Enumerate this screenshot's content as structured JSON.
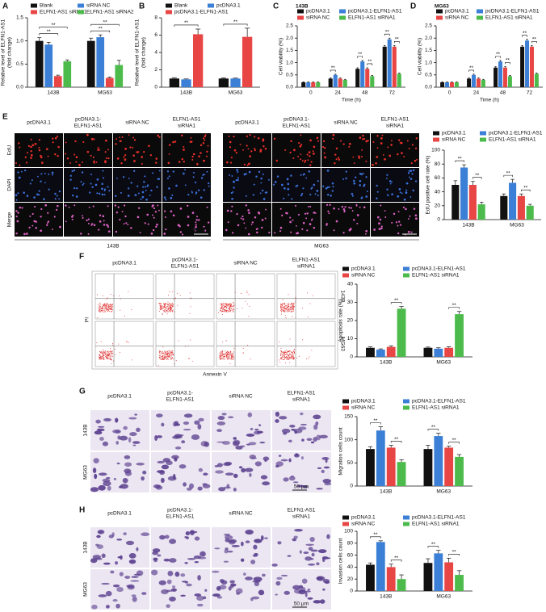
{
  "panels": [
    "A",
    "B",
    "C",
    "D",
    "E",
    "F",
    "G",
    "H"
  ],
  "chart_data": [
    {
      "type": "bar",
      "ylabel": [
        "Relative level of ELFN1-AS1",
        "(fold change)"
      ],
      "categories": [
        "143B",
        "MG63"
      ],
      "series": [
        {
          "name": "Blank",
          "color": "#111111",
          "values": [
            1.0,
            1.0
          ],
          "errors": [
            0.07,
            0.06
          ]
        },
        {
          "name": "siRNA NC",
          "color": "#3b7fd6",
          "values": [
            0.92,
            1.08
          ],
          "errors": [
            0.05,
            0.05
          ]
        },
        {
          "name": "ELFN1-AS1 siRNA1",
          "color": "#e84545",
          "values": [
            0.24,
            0.2
          ],
          "errors": [
            0.02,
            0.02
          ]
        },
        {
          "name": "ELFN1-AS1 siRNA2",
          "color": "#4cbb4c",
          "values": [
            0.56,
            0.48
          ],
          "errors": [
            0.03,
            0.1
          ]
        }
      ],
      "ylim": [
        0,
        1.5
      ],
      "yticks": [
        {
          "value": 0,
          "label": "0.0"
        },
        0.5,
        {
          "value": 1,
          "label": "1.0"
        },
        1.5
      ],
      "annotations": [
        "**",
        "**",
        "**",
        "**"
      ]
    },
    {
      "type": "bar",
      "ylabel": [
        "Relative level of ELFN1-AS1",
        "(fold change)"
      ],
      "categories": [
        "143B",
        "MG63"
      ],
      "series": [
        {
          "name": "Blank",
          "color": "#111111",
          "values": [
            1.0,
            1.0
          ],
          "errors": [
            0.1,
            0.08
          ]
        },
        {
          "name": "pcDNA3.1",
          "color": "#3b7fd6",
          "values": [
            0.9,
            1.0
          ],
          "errors": [
            0.05,
            0.05
          ]
        },
        {
          "name": "pcDNA3.1-ELFN1-AS1",
          "color": "#e84545",
          "values": [
            6.1,
            5.8
          ],
          "errors": [
            0.6,
            1.0
          ]
        }
      ],
      "ylim": [
        0,
        8
      ],
      "yticks": [
        0,
        2,
        4,
        6,
        8
      ],
      "annotations": [
        "**",
        "**"
      ]
    },
    {
      "type": "bar",
      "title": "143B",
      "ylabel": [
        "Cell viability (%)"
      ],
      "xlabel": "Time (h)",
      "categories": [
        "0",
        "24",
        "48",
        "72"
      ],
      "series": [
        {
          "name": "pcDNA3.1",
          "color": "#111111",
          "values": [
            0.2,
            0.35,
            0.75,
            1.65
          ],
          "errors": [
            0.02,
            0.03,
            0.04,
            0.05
          ]
        },
        {
          "name": "pcDNA3.1-ELFN1-AS1",
          "color": "#3b7fd6",
          "values": [
            0.2,
            0.5,
            1.05,
            1.95
          ],
          "errors": [
            0.02,
            0.03,
            0.04,
            0.05
          ]
        },
        {
          "name": "siRNA NC",
          "color": "#e84545",
          "values": [
            0.2,
            0.35,
            0.75,
            1.65
          ],
          "errors": [
            0.02,
            0.03,
            0.04,
            0.05
          ]
        },
        {
          "name": "ELFN1-AS1 siRNA1",
          "color": "#4cbb4c",
          "values": [
            0.2,
            0.3,
            0.45,
            0.55
          ],
          "errors": [
            0.02,
            0.02,
            0.03,
            0.03
          ]
        }
      ],
      "ylim": [
        0,
        2.5
      ],
      "yticks": [
        {
          "value": 0,
          "label": "0.0"
        },
        0.5,
        {
          "value": 1,
          "label": "1.0"
        },
        1.5,
        {
          "value": 2,
          "label": "2.0"
        },
        2.5
      ],
      "annotations": [
        "**",
        "**",
        "**",
        "**",
        "**"
      ]
    },
    {
      "type": "bar",
      "title": "MG63",
      "ylabel": [
        "Cell viability (%)"
      ],
      "xlabel": "Time (h)",
      "categories": [
        "0",
        "24",
        "48",
        "72"
      ],
      "series": [
        {
          "name": "pcDNA3.1",
          "color": "#111111",
          "values": [
            0.2,
            0.35,
            0.8,
            1.65
          ],
          "errors": [
            0.02,
            0.03,
            0.04,
            0.05
          ]
        },
        {
          "name": "pcDNA3.1-ELFN1-AS1",
          "color": "#3b7fd6",
          "values": [
            0.2,
            0.5,
            1.05,
            1.9
          ],
          "errors": [
            0.02,
            0.03,
            0.04,
            0.05
          ]
        },
        {
          "name": "siRNA NC",
          "color": "#e84545",
          "values": [
            0.2,
            0.35,
            0.8,
            1.65
          ],
          "errors": [
            0.02,
            0.03,
            0.04,
            0.05
          ]
        },
        {
          "name": "ELFN1-AS1 siRNA1",
          "color": "#4cbb4c",
          "values": [
            0.2,
            0.3,
            0.45,
            0.55
          ],
          "errors": [
            0.02,
            0.02,
            0.03,
            0.03
          ]
        }
      ],
      "ylim": [
        0,
        2.5
      ],
      "yticks": [
        {
          "value": 0,
          "label": "0.0"
        },
        0.5,
        {
          "value": 1,
          "label": "1.0"
        },
        1.5,
        {
          "value": 2,
          "label": "2.0"
        },
        2.5
      ],
      "annotations": [
        "**",
        "**",
        "**",
        "**",
        "**"
      ]
    },
    {
      "type": "bar",
      "ylabel": [
        "EdU positive cell rate (%)"
      ],
      "categories": [
        "143B",
        "MG63"
      ],
      "series": [
        {
          "name": "pcDNA3.1",
          "color": "#111111",
          "values": [
            50,
            34
          ],
          "errors": [
            6,
            3
          ]
        },
        {
          "name": "pcDNA3.1-ELFN1-AS1",
          "color": "#3b7fd6",
          "values": [
            75,
            53
          ],
          "errors": [
            4,
            5
          ]
        },
        {
          "name": "siRNA NC",
          "color": "#e84545",
          "values": [
            50,
            34
          ],
          "errors": [
            5,
            3
          ]
        },
        {
          "name": "ELFN1-AS1 siRNA1",
          "color": "#4cbb4c",
          "values": [
            22,
            20
          ],
          "errors": [
            3,
            2
          ]
        }
      ],
      "ylim": [
        0,
        100
      ],
      "yticks": [
        0,
        20,
        40,
        60,
        80,
        100
      ],
      "annotations": [
        "**",
        "**",
        "**",
        "**"
      ]
    },
    {
      "type": "bar",
      "ylabel": [
        "Apoptosis rate (%)"
      ],
      "categories": [
        "143B",
        "MG63"
      ],
      "series": [
        {
          "name": "pcDNA3.1",
          "color": "#111111",
          "values": [
            5,
            5
          ],
          "errors": [
            0.5,
            0.4
          ]
        },
        {
          "name": "pcDNA3.1-ELFN1-AS1",
          "color": "#3b7fd6",
          "values": [
            4,
            4.5
          ],
          "errors": [
            0.4,
            0.5
          ]
        },
        {
          "name": "siRNA NC",
          "color": "#e84545",
          "values": [
            5.5,
            5
          ],
          "errors": [
            0.6,
            0.5
          ]
        },
        {
          "name": "ELFN1-AS1 siRNA1",
          "color": "#4cbb4c",
          "values": [
            26.5,
            23.5
          ],
          "errors": [
            1.2,
            1.5
          ]
        }
      ],
      "ylim": [
        0,
        40
      ],
      "yticks": [
        0,
        10,
        20,
        30,
        40
      ],
      "annotations": [
        "**",
        "**"
      ]
    },
    {
      "type": "bar",
      "ylabel": [
        "Migration cells count"
      ],
      "categories": [
        "143B",
        "MG63"
      ],
      "series": [
        {
          "name": "pcDNA3.1",
          "color": "#111111",
          "values": [
            80,
            80
          ],
          "errors": [
            5,
            8
          ]
        },
        {
          "name": "pcDNA3.1-ELFN1-AS1",
          "color": "#3b7fd6",
          "values": [
            120,
            108
          ],
          "errors": [
            8,
            6
          ]
        },
        {
          "name": "siRNA NC",
          "color": "#e84545",
          "values": [
            83,
            83
          ],
          "errors": [
            5,
            3
          ]
        },
        {
          "name": "ELFN1-AS1 siRNA1",
          "color": "#4cbb4c",
          "values": [
            52,
            63
          ],
          "errors": [
            5,
            5
          ]
        }
      ],
      "ylim": [
        0,
        150
      ],
      "yticks": [
        0,
        50,
        100,
        150
      ],
      "annotations": [
        "**",
        "**",
        "**",
        "**"
      ]
    },
    {
      "type": "bar",
      "ylabel": [
        "Invasion cells count"
      ],
      "categories": [
        "143B",
        "MG63"
      ],
      "series": [
        {
          "name": "pcDNA3.1",
          "color": "#111111",
          "values": [
            44,
            47
          ],
          "errors": [
            3,
            7
          ]
        },
        {
          "name": "pcDNA3.1-ELFN1-AS1",
          "color": "#3b7fd6",
          "values": [
            82,
            63
          ],
          "errors": [
            2,
            5
          ]
        },
        {
          "name": "siRNA NC",
          "color": "#e84545",
          "values": [
            40,
            48
          ],
          "errors": [
            5,
            7
          ]
        },
        {
          "name": "ELFN1-AS1 siRNA1",
          "color": "#4cbb4c",
          "values": [
            20,
            27
          ],
          "errors": [
            7,
            7
          ]
        }
      ],
      "ylim": [
        0,
        100
      ],
      "yticks": [
        0,
        20,
        40,
        60,
        80,
        100
      ],
      "annotations": [
        "**",
        "**",
        "**",
        "**"
      ]
    }
  ],
  "edu_images": {
    "columns": [
      [
        "pcDNA3.1"
      ],
      [
        "pcDNA3.1-",
        "ELFN1-AS1"
      ],
      [
        "siRNA NC"
      ],
      [
        "ELFN1-AS1",
        "siRNA1"
      ]
    ],
    "rows": [
      "EdU",
      "DAPI",
      "Merge"
    ],
    "groups": [
      "143B",
      "MG63"
    ],
    "scale": "50 μm"
  },
  "flow_images": {
    "columns": [
      [
        "pcDNA3.1"
      ],
      [
        "pcDNA3.1-",
        "ELFN1-AS1"
      ],
      [
        "siRNA NC"
      ],
      [
        "ELFN1-AS1",
        "siRNA1"
      ]
    ],
    "rows": [
      "143B",
      "MG63"
    ],
    "y_label": "PI",
    "x_label": "Annexin V"
  },
  "migration_images": {
    "columns": [
      [
        "pcDNA3.1"
      ],
      [
        "pcDNA3.1-",
        "ELFN1-AS1"
      ],
      [
        "siRNA NC"
      ],
      [
        "ELFN1-AS1",
        "siRNA1"
      ]
    ],
    "rows": [
      "143B",
      "MG63"
    ],
    "scale": "50 μm"
  },
  "invasion_images": {
    "columns": [
      [
        "pcDNA3.1"
      ],
      [
        "pcDNA3.1-",
        "ELFN1-AS1"
      ],
      [
        "siRNA NC"
      ],
      [
        "ELFN1-AS1",
        "siRNA1"
      ]
    ],
    "rows": [
      "143B",
      "MG63"
    ],
    "scale": "50 μm"
  }
}
